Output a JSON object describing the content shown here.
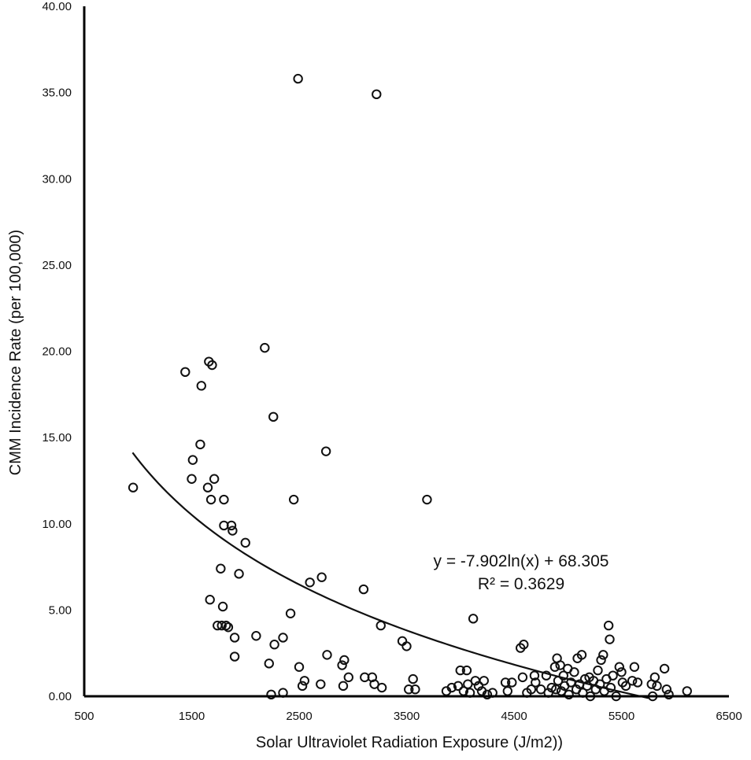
{
  "chart_data": {
    "type": "scatter",
    "xlabel": "Solar Ultraviolet Radiation Exposure (J/m2))",
    "ylabel": "CMM Incidence Rate  (per 100,000)",
    "xlim": [
      500,
      6500
    ],
    "ylim": [
      0,
      40
    ],
    "x_ticks": [
      "500",
      "1500",
      "2500",
      "3500",
      "4500",
      "5500",
      "6500"
    ],
    "y_ticks": [
      "0.00",
      "5.00",
      "10.00",
      "15.00",
      "20.00",
      "25.00",
      "30.00",
      "35.00",
      "40.00"
    ],
    "grid": false,
    "legend": "none",
    "trendline": {
      "type": "logarithmic",
      "a": -7.902,
      "b": 68.305,
      "x_range": [
        950,
        5750
      ],
      "equation_label": "y = -7.902ln(x) + 68.305",
      "r2_label": "R² = 0.3629"
    },
    "series": [
      {
        "points": [
          [
            955,
            12.1
          ],
          [
            1440,
            18.8
          ],
          [
            1500,
            12.6
          ],
          [
            1510,
            13.7
          ],
          [
            1580,
            14.6
          ],
          [
            1590,
            18.0
          ],
          [
            1650,
            12.1
          ],
          [
            1660,
            19.4
          ],
          [
            1670,
            5.6
          ],
          [
            1680,
            11.4
          ],
          [
            1690,
            19.2
          ],
          [
            1710,
            12.6
          ],
          [
            1740,
            4.1
          ],
          [
            1770,
            7.4
          ],
          [
            1780,
            4.1
          ],
          [
            1790,
            5.2
          ],
          [
            1800,
            9.9
          ],
          [
            1800,
            11.4
          ],
          [
            1820,
            4.1
          ],
          [
            1840,
            4.0
          ],
          [
            1870,
            9.9
          ],
          [
            1880,
            9.6
          ],
          [
            1900,
            3.4
          ],
          [
            1900,
            2.3
          ],
          [
            1940,
            7.1
          ],
          [
            2000,
            8.9
          ],
          [
            2100,
            3.5
          ],
          [
            2180,
            20.2
          ],
          [
            2220,
            1.9
          ],
          [
            2240,
            0.1
          ],
          [
            2260,
            16.2
          ],
          [
            2270,
            3.0
          ],
          [
            2350,
            0.2
          ],
          [
            2350,
            3.4
          ],
          [
            2420,
            4.8
          ],
          [
            2450,
            11.4
          ],
          [
            2490,
            35.8
          ],
          [
            2500,
            1.7
          ],
          [
            2530,
            0.6
          ],
          [
            2550,
            0.9
          ],
          [
            2600,
            6.6
          ],
          [
            2700,
            0.7
          ],
          [
            2710,
            6.9
          ],
          [
            2750,
            14.2
          ],
          [
            2760,
            2.4
          ],
          [
            2900,
            1.8
          ],
          [
            2910,
            0.6
          ],
          [
            2920,
            2.1
          ],
          [
            2960,
            1.1
          ],
          [
            3100,
            6.2
          ],
          [
            3110,
            1.1
          ],
          [
            3180,
            1.1
          ],
          [
            3200,
            0.7
          ],
          [
            3220,
            34.9
          ],
          [
            3260,
            4.1
          ],
          [
            3270,
            0.5
          ],
          [
            3460,
            3.2
          ],
          [
            3500,
            2.9
          ],
          [
            3520,
            0.4
          ],
          [
            3560,
            1.0
          ],
          [
            3580,
            0.4
          ],
          [
            3690,
            11.4
          ],
          [
            3870,
            0.3
          ],
          [
            3920,
            0.5
          ],
          [
            3980,
            0.6
          ],
          [
            4000,
            1.5
          ],
          [
            4030,
            0.3
          ],
          [
            4060,
            1.5
          ],
          [
            4070,
            0.7
          ],
          [
            4090,
            0.2
          ],
          [
            4120,
            4.5
          ],
          [
            4140,
            0.9
          ],
          [
            4170,
            0.6
          ],
          [
            4200,
            0.3
          ],
          [
            4220,
            0.9
          ],
          [
            4250,
            0.1
          ],
          [
            4300,
            0.2
          ],
          [
            4420,
            0.8
          ],
          [
            4440,
            0.3
          ],
          [
            4480,
            0.8
          ],
          [
            4560,
            2.8
          ],
          [
            4580,
            1.1
          ],
          [
            4590,
            3.0
          ],
          [
            4620,
            0.2
          ],
          [
            4660,
            0.4
          ],
          [
            4690,
            1.2
          ],
          [
            4700,
            0.8
          ],
          [
            4750,
            0.4
          ],
          [
            4800,
            1.2
          ],
          [
            4820,
            0.2
          ],
          [
            4850,
            0.5
          ],
          [
            4880,
            1.7
          ],
          [
            4890,
            0.4
          ],
          [
            4900,
            2.2
          ],
          [
            4910,
            0.9
          ],
          [
            4930,
            1.8
          ],
          [
            4940,
            0.3
          ],
          [
            4960,
            1.2
          ],
          [
            4970,
            0.6
          ],
          [
            5000,
            1.6
          ],
          [
            5010,
            0.1
          ],
          [
            5030,
            0.8
          ],
          [
            5060,
            1.4
          ],
          [
            5080,
            0.4
          ],
          [
            5090,
            2.2
          ],
          [
            5110,
            0.7
          ],
          [
            5130,
            2.4
          ],
          [
            5140,
            0.2
          ],
          [
            5160,
            1.0
          ],
          [
            5180,
            0.6
          ],
          [
            5200,
            1.1
          ],
          [
            5210,
            0.0
          ],
          [
            5240,
            0.9
          ],
          [
            5260,
            0.4
          ],
          [
            5280,
            1.5
          ],
          [
            5300,
            0.7
          ],
          [
            5310,
            2.1
          ],
          [
            5330,
            2.4
          ],
          [
            5340,
            0.3
          ],
          [
            5360,
            1.0
          ],
          [
            5380,
            4.1
          ],
          [
            5390,
            3.3
          ],
          [
            5400,
            0.5
          ],
          [
            5420,
            1.2
          ],
          [
            5450,
            0.0
          ],
          [
            5480,
            1.7
          ],
          [
            5500,
            1.4
          ],
          [
            5510,
            0.8
          ],
          [
            5540,
            0.6
          ],
          [
            5600,
            0.9
          ],
          [
            5620,
            1.7
          ],
          [
            5650,
            0.8
          ],
          [
            5780,
            0.7
          ],
          [
            5790,
            0.0
          ],
          [
            5810,
            1.1
          ],
          [
            5830,
            0.6
          ],
          [
            5900,
            1.6
          ],
          [
            5920,
            0.4
          ],
          [
            5940,
            0.1
          ],
          [
            6110,
            0.3
          ]
        ]
      }
    ]
  }
}
